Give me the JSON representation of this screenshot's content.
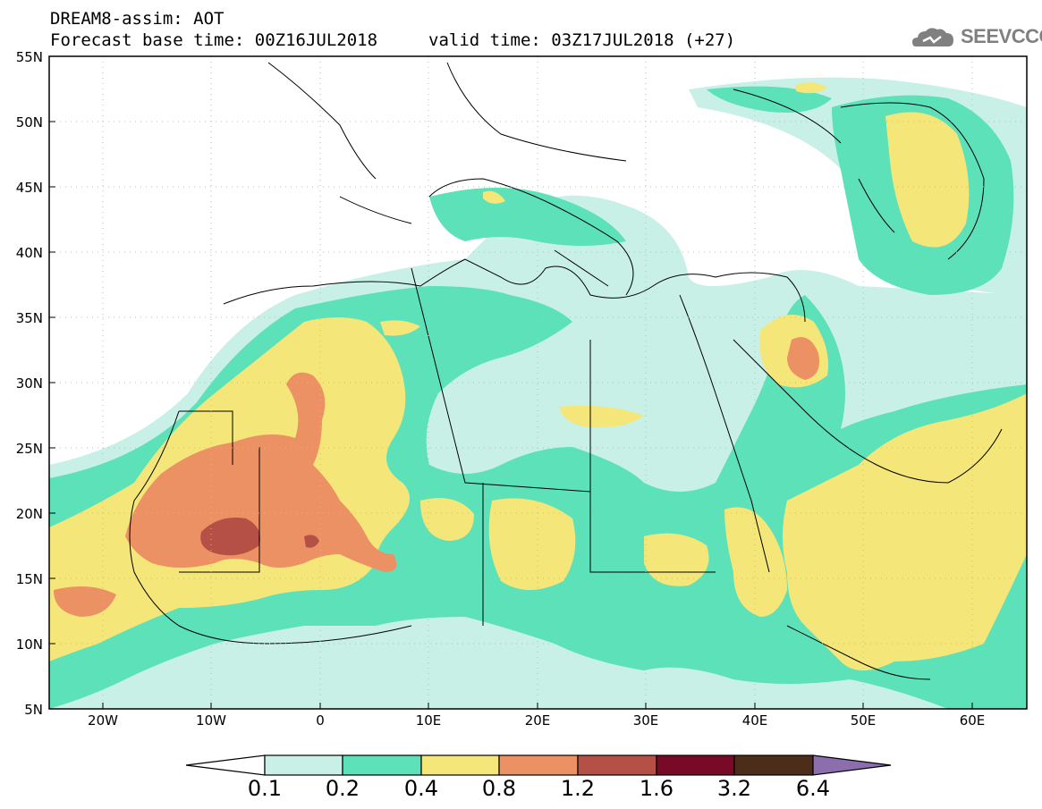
{
  "header": {
    "title": "DREAM8-assim: AOT",
    "base_time": "Forecast base time: 00Z16JUL2018",
    "valid_time": "valid time: 03Z17JUL2018 (+27)",
    "logo_text": "SEEVCCC"
  },
  "axes": {
    "lat_labels": [
      "55N",
      "50N",
      "45N",
      "40N",
      "35N",
      "30N",
      "25N",
      "20N",
      "15N",
      "10N",
      "5N"
    ],
    "lon_labels": [
      "20W",
      "10W",
      "0",
      "10E",
      "20E",
      "30E",
      "40E",
      "50E",
      "60E"
    ],
    "lat_range": [
      5,
      55
    ],
    "lon_range": [
      -25,
      65
    ]
  },
  "legend": {
    "levels": [
      "0.1",
      "0.2",
      "0.4",
      "0.8",
      "1.2",
      "1.6",
      "3.2",
      "6.4"
    ],
    "colors": [
      "#ffffff",
      "#c8f0e6",
      "#5ce1b9",
      "#f5e67a",
      "#eb9164",
      "#b45046",
      "#780a28",
      "#4b2d19",
      "#8c6eaf"
    ]
  },
  "colors": {
    "land_border": "#000000",
    "grid": "#bbbbbb"
  }
}
